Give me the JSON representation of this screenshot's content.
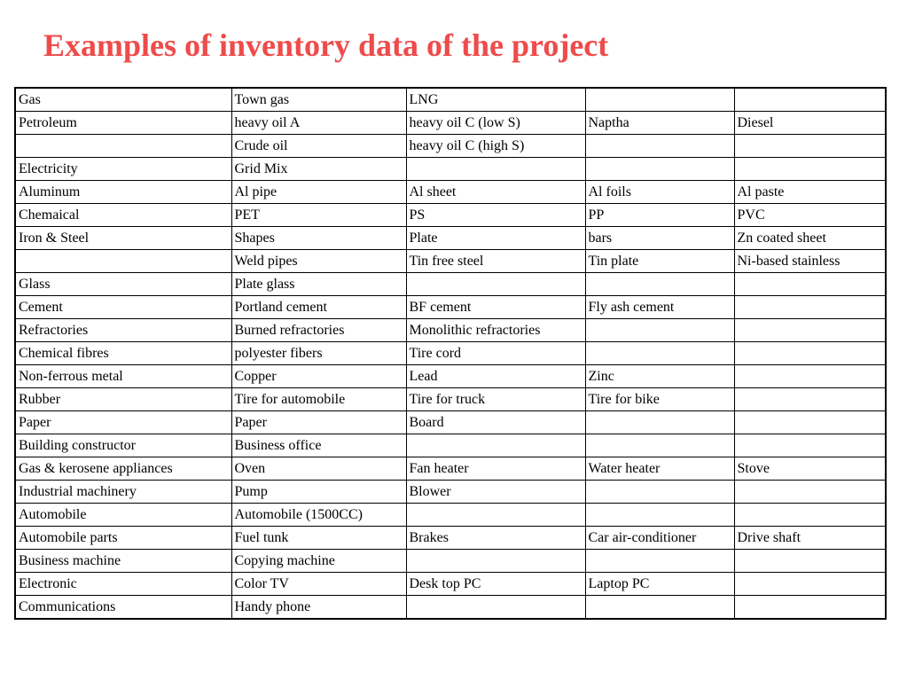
{
  "title": "Examples of inventory data of the project",
  "table": {
    "rows": [
      [
        "Gas",
        "Town gas",
        "LNG",
        "",
        ""
      ],
      [
        "Petroleum",
        "heavy oil A",
        "heavy oil C (low S)",
        "Naptha",
        "Diesel"
      ],
      [
        "",
        "Crude oil",
        "heavy oil C (high S)",
        "",
        ""
      ],
      [
        "Electricity",
        "Grid Mix",
        "",
        "",
        ""
      ],
      [
        "Aluminum",
        "Al pipe",
        "Al sheet",
        "Al foils",
        "Al paste"
      ],
      [
        "Chemaical",
        "PET",
        "PS",
        "PP",
        "PVC"
      ],
      [
        "Iron & Steel",
        "Shapes",
        "Plate",
        "bars",
        "Zn coated sheet"
      ],
      [
        "",
        "Weld pipes",
        "Tin free steel",
        "Tin plate",
        "Ni-based stainless"
      ],
      [
        "Glass",
        "Plate glass",
        "",
        "",
        ""
      ],
      [
        "Cement",
        "Portland cement",
        "BF cement",
        "Fly ash cement",
        ""
      ],
      [
        "Refractories",
        "Burned refractories",
        "Monolithic refractories",
        "",
        ""
      ],
      [
        "Chemical fibres",
        "polyester fibers",
        "Tire cord",
        "",
        ""
      ],
      [
        "Non-ferrous metal",
        "Copper",
        "Lead",
        "Zinc",
        ""
      ],
      [
        "Rubber",
        "Tire for automobile",
        "Tire for truck",
        "Tire for bike",
        ""
      ],
      [
        "Paper",
        "Paper",
        "Board",
        "",
        ""
      ],
      [
        "Building constructor",
        "Business office",
        "",
        "",
        ""
      ],
      [
        "Gas & kerosene appliances",
        "Oven",
        "Fan heater",
        "Water heater",
        "Stove"
      ],
      [
        "Industrial machinery",
        "Pump",
        "Blower",
        "",
        ""
      ],
      [
        "Automobile",
        "Automobile (1500CC)",
        "",
        "",
        ""
      ],
      [
        "Automobile parts",
        "Fuel tunk",
        "Brakes",
        "Car air-conditioner",
        "Drive shaft"
      ],
      [
        "Business machine",
        "Copying machine",
        "",
        "",
        ""
      ],
      [
        "Electronic",
        "Color TV",
        "Desk top PC",
        "Laptop PC",
        ""
      ],
      [
        "Communications",
        "Handy phone",
        "",
        "",
        ""
      ]
    ]
  }
}
